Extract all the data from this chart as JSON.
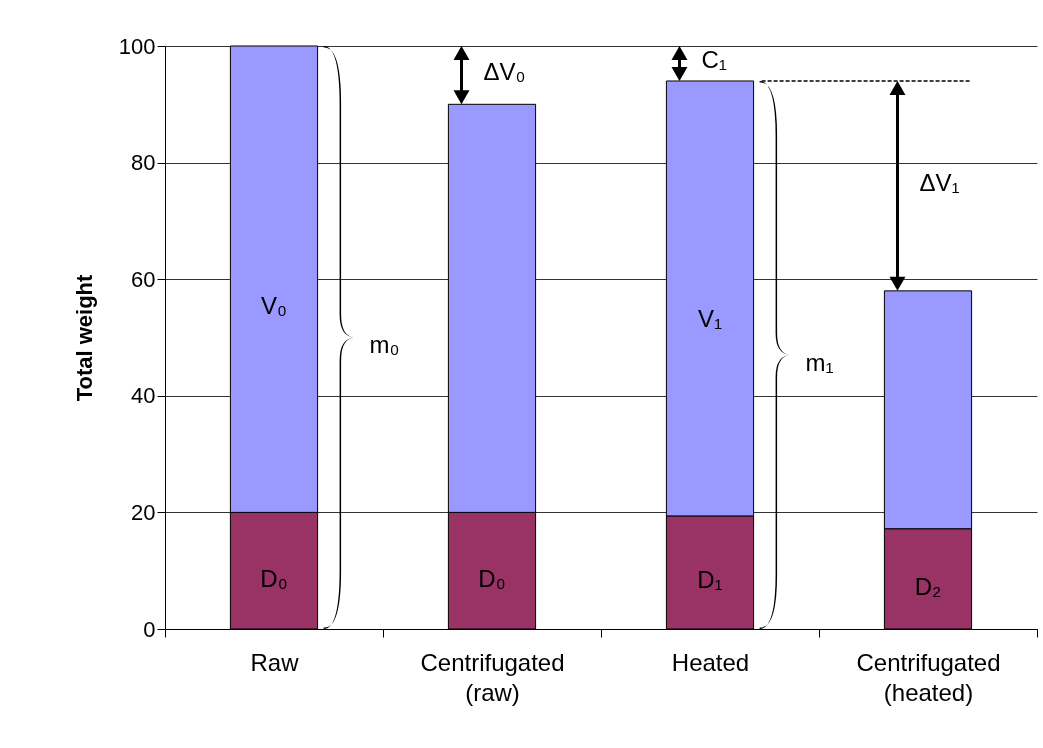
{
  "chart_data": {
    "type": "bar",
    "stacked": true,
    "ylabel": "Total weight",
    "categories": [
      "Raw",
      "Centrifugated (raw)",
      "Heated",
      "Centrifugated (heated)"
    ],
    "series": [
      {
        "color": "#993366",
        "values": [
          20,
          20,
          19.4,
          17.2
        ]
      },
      {
        "color": "#9999ff",
        "values": [
          80,
          70,
          74.6,
          40.8
        ]
      }
    ],
    "ylim": [
      0,
      100
    ],
    "yticks": [
      0,
      20,
      40,
      60,
      80,
      100
    ],
    "grid": "y",
    "annotations": [
      "V₀",
      "D₀",
      "m₀",
      "ΔV₀",
      "D₀",
      "C₁",
      "V₁",
      "D₁",
      "m₁",
      "ΔV₁",
      "D₂"
    ]
  }
}
